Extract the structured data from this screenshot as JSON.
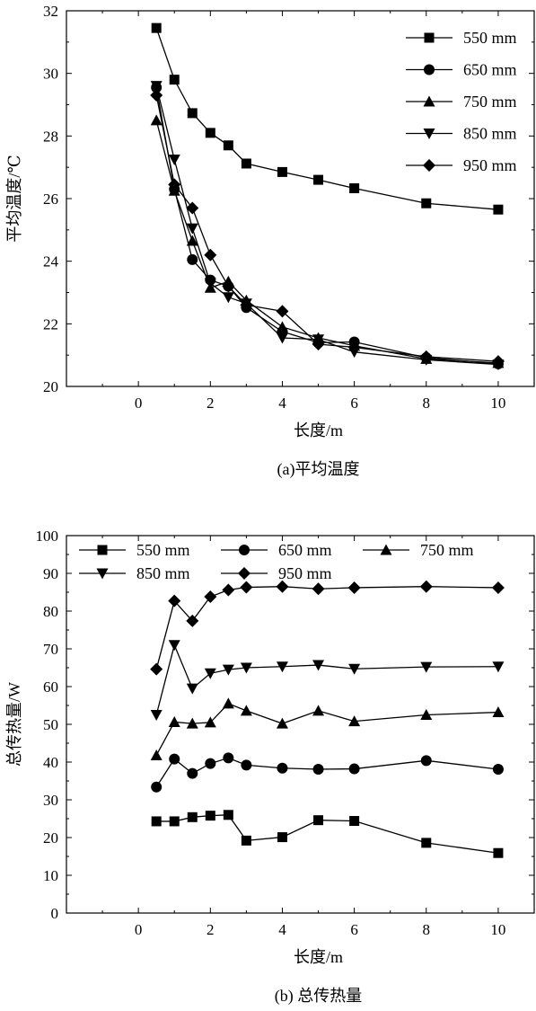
{
  "chart_data": [
    {
      "type": "line",
      "title": "",
      "caption": "(a)平均温度",
      "xlabel": "长度/m",
      "ylabel": "平均温度/℃",
      "xlim": [
        -2,
        11
      ],
      "ylim": [
        20,
        32
      ],
      "xticks": [
        0,
        2,
        4,
        6,
        8,
        10
      ],
      "yticks": [
        20,
        22,
        24,
        26,
        28,
        30,
        32
      ],
      "legend_position": "top-right",
      "x": [
        0.5,
        1,
        1.5,
        2,
        2.5,
        3,
        4,
        5,
        6,
        8,
        10
      ],
      "series": [
        {
          "name": "550 mm",
          "marker": "square",
          "values": [
            31.45,
            29.8,
            28.73,
            28.1,
            27.7,
            27.12,
            26.85,
            26.6,
            26.33,
            25.85,
            25.65
          ]
        },
        {
          "name": "650 mm",
          "marker": "circle",
          "values": [
            29.55,
            26.3,
            24.05,
            23.4,
            23.2,
            22.52,
            21.75,
            21.4,
            21.42,
            20.92,
            20.72
          ]
        },
        {
          "name": "750 mm",
          "marker": "triangle-up",
          "values": [
            28.5,
            26.25,
            24.65,
            23.15,
            23.35,
            22.75,
            21.9,
            21.55,
            21.3,
            20.88,
            20.75
          ]
        },
        {
          "name": "850 mm",
          "marker": "triangle-down",
          "values": [
            29.6,
            27.25,
            25.05,
            23.3,
            22.85,
            22.65,
            21.55,
            21.5,
            21.1,
            20.85,
            20.7
          ]
        },
        {
          "name": "950 mm",
          "marker": "diamond",
          "values": [
            29.3,
            26.45,
            25.7,
            24.2,
            23.2,
            22.6,
            22.4,
            21.35,
            21.25,
            20.95,
            20.8
          ]
        }
      ]
    },
    {
      "type": "line",
      "title": "",
      "caption": "(b) 总传热量",
      "xlabel": "长度/m",
      "ylabel": "总传热量/W",
      "xlim": [
        -2,
        11
      ],
      "ylim": [
        0,
        100
      ],
      "xticks": [
        0,
        2,
        4,
        6,
        8,
        10
      ],
      "yticks": [
        0,
        10,
        20,
        30,
        40,
        50,
        60,
        70,
        80,
        90,
        100
      ],
      "legend_position": "top",
      "x": [
        0.5,
        1,
        1.5,
        2,
        2.5,
        3,
        4,
        5,
        6,
        8,
        10
      ],
      "series": [
        {
          "name": "550 mm",
          "marker": "square",
          "values": [
            24.3,
            24.3,
            25.4,
            25.8,
            26.0,
            19.2,
            20.1,
            24.6,
            24.4,
            18.6,
            15.9
          ]
        },
        {
          "name": "650 mm",
          "marker": "circle",
          "values": [
            33.4,
            40.8,
            37.0,
            39.6,
            41.1,
            39.2,
            38.4,
            38.1,
            38.2,
            40.4,
            38.1
          ]
        },
        {
          "name": "750 mm",
          "marker": "triangle-up",
          "values": [
            41.8,
            50.6,
            50.2,
            50.5,
            55.5,
            53.6,
            50.2,
            53.6,
            50.8,
            52.5,
            53.2
          ]
        },
        {
          "name": "850 mm",
          "marker": "triangle-down",
          "values": [
            52.5,
            71.0,
            59.5,
            63.5,
            64.5,
            65.0,
            65.3,
            65.7,
            64.7,
            65.2,
            65.3
          ]
        },
        {
          "name": "950 mm",
          "marker": "diamond",
          "values": [
            64.6,
            82.7,
            77.4,
            83.8,
            85.6,
            86.3,
            86.5,
            85.9,
            86.2,
            86.5,
            86.2
          ]
        }
      ]
    }
  ]
}
